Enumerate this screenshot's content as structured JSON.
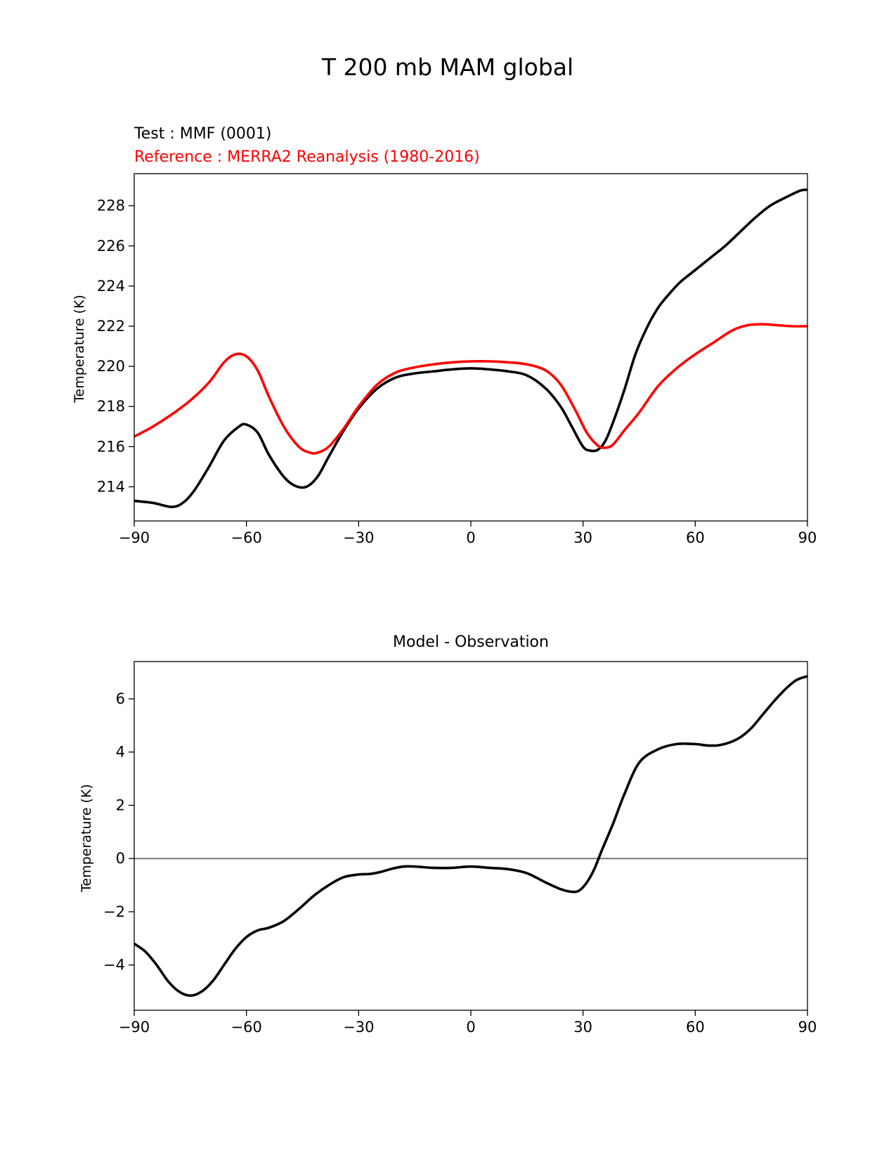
{
  "figure": {
    "suptitle": "T 200 mb MAM global"
  },
  "colors": {
    "test": "#000000",
    "reference": "#ff0000",
    "zero_line": "#808080",
    "axes": "#000000",
    "background": "#ffffff"
  },
  "chart_data": [
    {
      "type": "line",
      "title_test": "Test : MMF (0001)",
      "title_reference": "Reference : MERRA2 Reanalysis (1980-2016)",
      "xlabel": "",
      "ylabel": "Temperature (K)",
      "xlim": [
        -90,
        90
      ],
      "ylim": [
        212.3,
        229.6
      ],
      "xticks": [
        -90,
        -60,
        -30,
        0,
        30,
        60,
        90
      ],
      "xtick_labels": [
        "−90",
        "−60",
        "−30",
        "0",
        "30",
        "60",
        "90"
      ],
      "yticks": [
        214,
        216,
        218,
        220,
        222,
        224,
        226,
        228
      ],
      "ytick_labels": [
        "214",
        "216",
        "218",
        "220",
        "222",
        "224",
        "226",
        "228"
      ],
      "grid": false,
      "legend": "none",
      "series": [
        {
          "name": "Test : MMF (0001)",
          "color": "#000000",
          "x": [
            -90,
            -85,
            -80,
            -77,
            -74,
            -70,
            -66,
            -62,
            -60,
            -57,
            -54,
            -50,
            -47,
            -44,
            -41,
            -38,
            -34,
            -30,
            -25,
            -20,
            -15,
            -10,
            -5,
            0,
            5,
            10,
            15,
            20,
            24,
            27,
            30,
            32,
            34,
            36,
            38,
            41,
            44,
            47,
            50,
            53,
            56,
            60,
            64,
            68,
            72,
            76,
            80,
            84,
            88,
            90
          ],
          "y": [
            213.3,
            213.2,
            213.0,
            213.2,
            213.8,
            215.0,
            216.3,
            217.0,
            217.1,
            216.7,
            215.6,
            214.5,
            214.05,
            214.0,
            214.5,
            215.5,
            216.8,
            217.9,
            218.9,
            219.45,
            219.65,
            219.75,
            219.85,
            219.9,
            219.85,
            219.75,
            219.55,
            218.9,
            218.0,
            217.0,
            216.0,
            215.8,
            215.85,
            216.3,
            217.2,
            218.8,
            220.6,
            221.9,
            222.9,
            223.6,
            224.2,
            224.8,
            225.4,
            226.0,
            226.7,
            227.4,
            228.0,
            228.4,
            228.75,
            228.8
          ]
        },
        {
          "name": "Reference : MERRA2 Reanalysis (1980-2016)",
          "color": "#ff0000",
          "x": [
            -90,
            -85,
            -80,
            -75,
            -70,
            -66,
            -63,
            -60,
            -57,
            -54,
            -50,
            -46,
            -43,
            -41,
            -38,
            -34,
            -30,
            -25,
            -20,
            -15,
            -10,
            -5,
            0,
            5,
            10,
            15,
            20,
            24,
            28,
            31,
            34,
            36,
            38,
            41,
            45,
            50,
            55,
            60,
            65,
            70,
            74,
            78,
            82,
            86,
            90
          ],
          "y": [
            216.5,
            217.0,
            217.6,
            218.3,
            219.2,
            220.2,
            220.6,
            220.5,
            219.8,
            218.5,
            217.0,
            216.0,
            215.7,
            215.7,
            216.0,
            216.9,
            218.0,
            219.1,
            219.7,
            219.95,
            220.1,
            220.2,
            220.25,
            220.25,
            220.2,
            220.1,
            219.8,
            219.1,
            217.8,
            216.7,
            216.05,
            215.95,
            216.1,
            216.8,
            217.7,
            219.0,
            219.9,
            220.6,
            221.2,
            221.8,
            222.05,
            222.1,
            222.05,
            222.0,
            222.0
          ]
        }
      ]
    },
    {
      "type": "line",
      "title": "Model - Observation",
      "xlabel": "",
      "ylabel": "Temperature (K)",
      "xlim": [
        -90,
        90
      ],
      "ylim": [
        -5.7,
        7.4
      ],
      "xticks": [
        -90,
        -60,
        -30,
        0,
        30,
        60,
        90
      ],
      "xtick_labels": [
        "−90",
        "−60",
        "−30",
        "0",
        "30",
        "60",
        "90"
      ],
      "yticks": [
        -4,
        -2,
        0,
        2,
        4,
        6
      ],
      "ytick_labels": [
        "−4",
        "−2",
        "0",
        "2",
        "4",
        "6"
      ],
      "grid": false,
      "legend": "none",
      "zero_line": true,
      "series": [
        {
          "color": "#000000",
          "x": [
            -90,
            -87,
            -84,
            -81,
            -78,
            -75,
            -72,
            -69,
            -66,
            -63,
            -60,
            -57,
            -54,
            -50,
            -46,
            -42,
            -38,
            -34,
            -30,
            -27,
            -24,
            -21,
            -18,
            -15,
            -10,
            -5,
            0,
            5,
            10,
            15,
            20,
            24,
            27,
            29,
            31,
            33,
            35,
            38,
            41,
            45,
            50,
            55,
            60,
            63,
            66,
            69,
            72,
            75,
            78,
            81,
            84,
            87,
            90
          ],
          "y": [
            -3.2,
            -3.5,
            -4.0,
            -4.6,
            -5.0,
            -5.15,
            -5.0,
            -4.6,
            -4.0,
            -3.4,
            -2.95,
            -2.7,
            -2.6,
            -2.35,
            -1.9,
            -1.4,
            -1.0,
            -0.7,
            -0.6,
            -0.58,
            -0.5,
            -0.38,
            -0.3,
            -0.3,
            -0.35,
            -0.35,
            -0.3,
            -0.35,
            -0.4,
            -0.55,
            -0.9,
            -1.15,
            -1.25,
            -1.2,
            -0.9,
            -0.4,
            0.3,
            1.3,
            2.4,
            3.6,
            4.1,
            4.3,
            4.3,
            4.25,
            4.25,
            4.35,
            4.55,
            4.9,
            5.4,
            5.9,
            6.35,
            6.7,
            6.85
          ]
        }
      ]
    }
  ]
}
